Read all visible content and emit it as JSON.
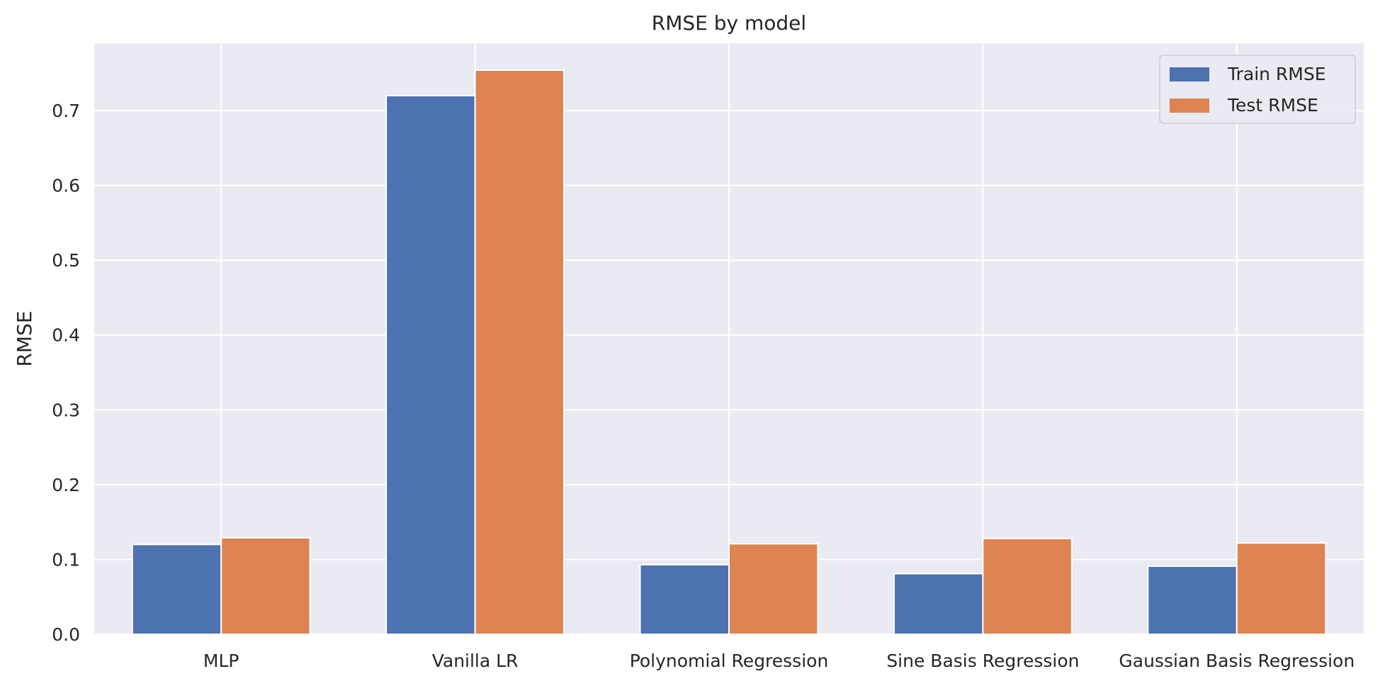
{
  "chart_data": {
    "type": "bar",
    "title": "RMSE by model",
    "xlabel": "",
    "ylabel": "RMSE",
    "categories": [
      "MLP",
      "Vanilla LR",
      "Polynomial Regression",
      "Sine Basis Regression",
      "Gaussian Basis Regression"
    ],
    "series": [
      {
        "name": "Train RMSE",
        "color": "#4c72b0",
        "values": [
          0.12,
          0.72,
          0.093,
          0.081,
          0.091
        ]
      },
      {
        "name": "Test RMSE",
        "color": "#dd8452",
        "values": [
          0.129,
          0.754,
          0.121,
          0.128,
          0.122
        ]
      }
    ],
    "ylim": [
      0,
      0.79
    ],
    "yticks": [
      0.0,
      0.1,
      0.2,
      0.3,
      0.4,
      0.5,
      0.6,
      0.7
    ],
    "ytick_labels": [
      "0.0",
      "0.1",
      "0.2",
      "0.3",
      "0.4",
      "0.5",
      "0.6",
      "0.7"
    ],
    "grid": true,
    "legend_position": "top-right",
    "background_color": "#eaeaf2",
    "grid_color": "#ffffff"
  }
}
